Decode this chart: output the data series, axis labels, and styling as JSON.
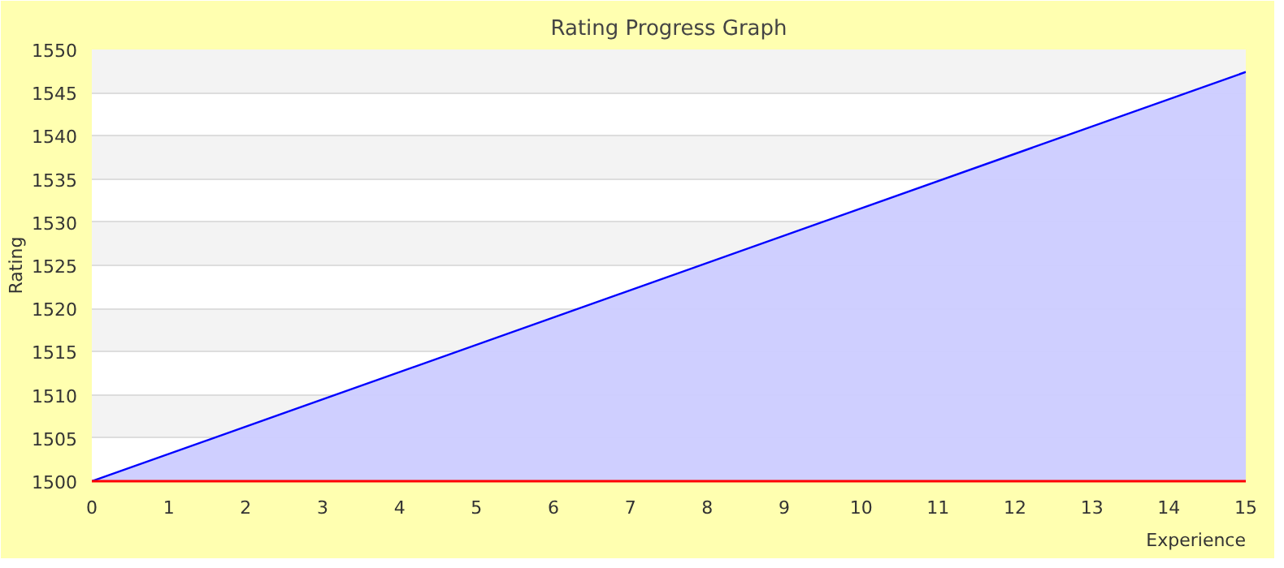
{
  "chart_data": {
    "type": "area",
    "title": "Rating Progress Graph",
    "xlabel": "Experience",
    "ylabel": "Rating",
    "x": [
      0,
      15
    ],
    "series": [
      {
        "color": "#0000ff",
        "values": [
          1500,
          1547.4
        ]
      }
    ],
    "xlim": [
      0,
      15
    ],
    "xticks": [
      0,
      1,
      2,
      3,
      4,
      5,
      6,
      7,
      8,
      9,
      10,
      11,
      12,
      13,
      14,
      15
    ],
    "ylim": [
      1500,
      1550
    ],
    "yticks": [
      1500,
      1505,
      1510,
      1515,
      1520,
      1525,
      1530,
      1535,
      1540,
      1545,
      1550
    ],
    "grid": "y"
  }
}
